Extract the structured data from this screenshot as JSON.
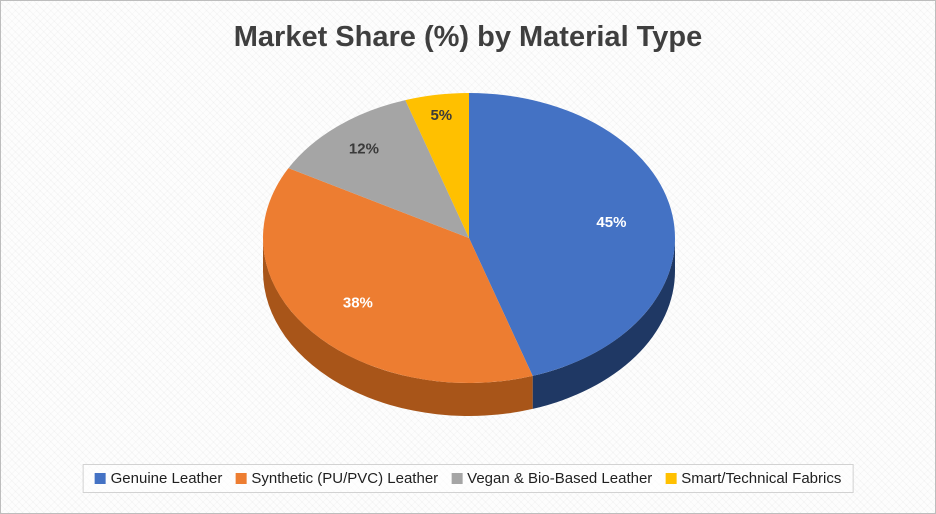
{
  "chart_data": {
    "type": "pie",
    "style": "3d-pie",
    "title": "Market Share (%) by Material Type",
    "start_angle_deg": 0,
    "direction": "clockwise",
    "legend": {
      "position": "bottom"
    },
    "series": [
      {
        "name": "Genuine Leather",
        "value": 45,
        "label": "45%",
        "color": "#4472C4",
        "side_color": "#1F3864",
        "label_color": "#FFFFFF"
      },
      {
        "name": "Synthetic (PU/PVC) Leather",
        "value": 38,
        "label": "38%",
        "color": "#ED7D31",
        "side_color": "#A85519",
        "label_color": "#FFFFFF"
      },
      {
        "name": "Vegan & Bio-Based Leather",
        "value": 12,
        "label": "12%",
        "color": "#A5A5A5",
        "side_color": "#6E6E6E",
        "label_color": "#3A3A3A"
      },
      {
        "name": "Smart/Technical Fabrics",
        "value": 5,
        "label": "5%",
        "color": "#FFC000",
        "side_color": "#9A7400",
        "label_color": "#3A3A3A"
      }
    ]
  }
}
